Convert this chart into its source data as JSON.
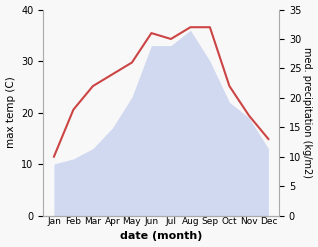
{
  "months": [
    "Jan",
    "Feb",
    "Mar",
    "Apr",
    "May",
    "Jun",
    "Jul",
    "Aug",
    "Sep",
    "Oct",
    "Nov",
    "Dec"
  ],
  "temp": [
    10,
    11,
    13,
    17,
    23,
    33,
    33,
    36,
    30,
    22,
    19,
    13
  ],
  "precip": [
    10,
    18,
    22,
    24,
    26,
    31,
    30,
    32,
    32,
    22,
    17,
    13
  ],
  "temp_color": "#c0ccee",
  "precip_color": "#cc4444",
  "ylabel_left": "max temp (C)",
  "ylabel_right": "med. precipitation (kg/m2)",
  "xlabel": "date (month)",
  "ylim_left": [
    0,
    40
  ],
  "ylim_right": [
    0,
    35
  ],
  "yticks_left": [
    0,
    10,
    20,
    30,
    40
  ],
  "yticks_right": [
    0,
    5,
    10,
    15,
    20,
    25,
    30,
    35
  ],
  "bg_color": "#f8f8f8"
}
